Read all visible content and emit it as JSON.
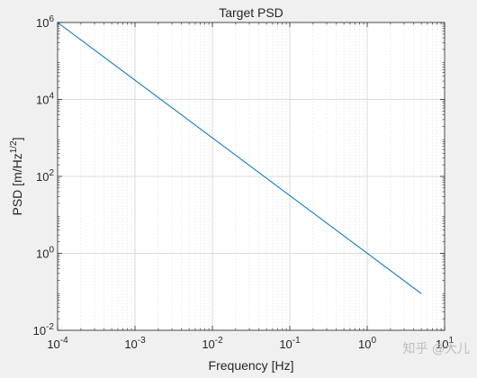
{
  "chart_data": {
    "type": "line",
    "title": "Target PSD",
    "xlabel": "Frequency [Hz]",
    "ylabel_main": "PSD [m/Hz",
    "ylabel_sup": "1/2",
    "ylabel_close": "]",
    "xscale": "log",
    "yscale": "log",
    "xlim": [
      0.0001,
      10
    ],
    "ylim": [
      0.01,
      1000000
    ],
    "grid": true,
    "x_ticks": [
      {
        "value": 0.0001,
        "base": "10",
        "exp": "-4"
      },
      {
        "value": 0.001,
        "base": "10",
        "exp": "-3"
      },
      {
        "value": 0.01,
        "base": "10",
        "exp": "-2"
      },
      {
        "value": 0.1,
        "base": "10",
        "exp": "-1"
      },
      {
        "value": 1,
        "base": "10",
        "exp": "0"
      },
      {
        "value": 10,
        "base": "10",
        "exp": "1"
      }
    ],
    "y_ticks": [
      {
        "value": 0.01,
        "base": "10",
        "exp": "-2"
      },
      {
        "value": 1,
        "base": "10",
        "exp": "0"
      },
      {
        "value": 100,
        "base": "10",
        "exp": "2"
      },
      {
        "value": 10000,
        "base": "10",
        "exp": "4"
      },
      {
        "value": 1000000,
        "base": "10",
        "exp": "6"
      }
    ],
    "series": [
      {
        "color": "#0072bd",
        "x": [
          0.0001,
          5
        ],
        "y": [
          1000000,
          0.09
        ]
      }
    ]
  },
  "watermark": "知乎 @大儿"
}
